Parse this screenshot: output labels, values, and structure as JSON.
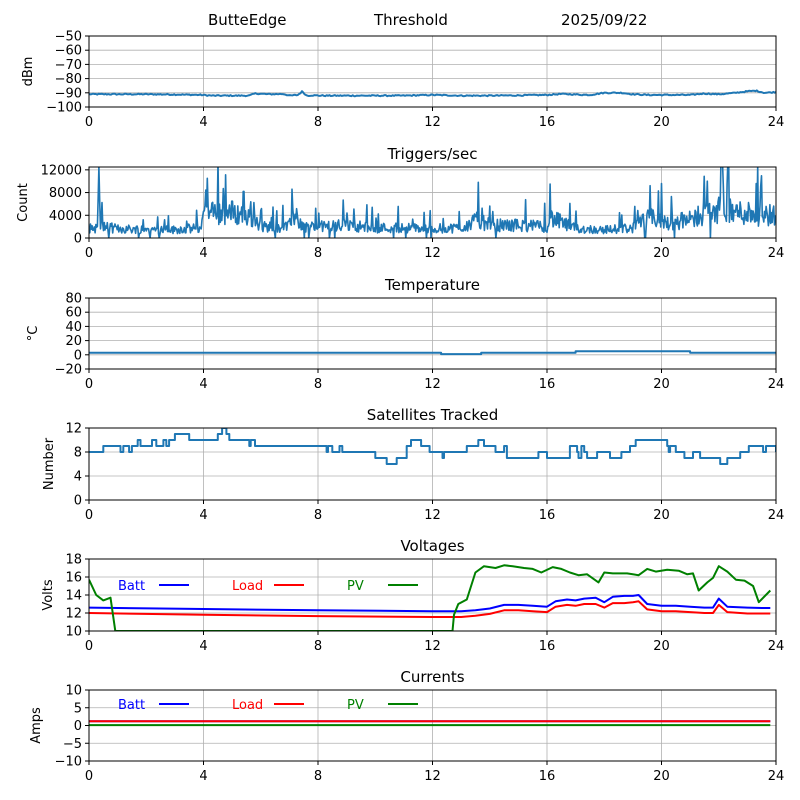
{
  "header": {
    "station": "ButteEdge",
    "mode": "Threshold",
    "date": "2025/09/22"
  },
  "colors": {
    "default_line": "#1f77b4",
    "batt": "#0000ff",
    "load": "#ff0000",
    "pv": "#008000",
    "grid": "#b0b0b0",
    "axis": "#000000"
  },
  "chart_data": [
    {
      "type": "line",
      "title": "",
      "xlabel": "",
      "ylabel": "dBm",
      "xlim": [
        0,
        24
      ],
      "ylim": [
        -100,
        -50
      ],
      "xticks": [
        0,
        4,
        8,
        12,
        16,
        20,
        24
      ],
      "yticks": [
        -100,
        -90,
        -80,
        -70,
        -60,
        -50
      ],
      "ytick_labels": [
        "−100",
        "−90",
        "−80",
        "−70",
        "−60",
        "−50"
      ],
      "grid": true,
      "series": [
        {
          "name": "threshold",
          "color_key": "default_line",
          "x": [
            0,
            1,
            2,
            3,
            3.9,
            4.3,
            5,
            5.6,
            5.8,
            6.3,
            6.8,
            7.0,
            7.3,
            7.45,
            7.6,
            7.8,
            8.2,
            9,
            10,
            11,
            12,
            13,
            14,
            15,
            16,
            16.5,
            17,
            17.5,
            18,
            18.6,
            19,
            19.5,
            20,
            21,
            21.5,
            22,
            22.5,
            23,
            23.3,
            23.6,
            24
          ],
          "y": [
            -91,
            -91,
            -91,
            -91.2,
            -91.5,
            -92,
            -92,
            -92,
            -90.5,
            -91,
            -90.8,
            -92,
            -91.5,
            -89,
            -92,
            -91.8,
            -92,
            -92,
            -92,
            -92,
            -91.5,
            -92,
            -92,
            -91.8,
            -91.5,
            -90.8,
            -91.2,
            -91.5,
            -90,
            -90,
            -91,
            -91.5,
            -91.5,
            -91.5,
            -90.5,
            -91,
            -90.2,
            -89,
            -88.5,
            -90,
            -89.5
          ]
        }
      ]
    },
    {
      "type": "line",
      "title": "Triggers/sec",
      "xlabel": "",
      "ylabel": "Count",
      "xlim": [
        0,
        24
      ],
      "ylim": [
        0,
        12500
      ],
      "xticks": [
        0,
        4,
        8,
        12,
        16,
        20,
        24
      ],
      "yticks": [
        0,
        4000,
        8000,
        12000
      ],
      "grid": true,
      "series": [
        {
          "name": "triggers",
          "color_key": "default_line",
          "style": "noisy",
          "x": [
            0,
            0.3,
            0.35,
            0.4,
            0.5,
            1,
            2,
            3,
            3.9,
            4.0,
            4.5,
            5,
            5.5,
            6,
            7,
            7.1,
            7.5,
            8,
            9,
            10,
            11,
            12,
            13,
            13.6,
            14,
            15,
            16,
            16.1,
            17,
            18,
            19,
            19.6,
            20,
            21,
            21.5,
            22,
            22.5,
            23,
            23.5,
            24
          ],
          "y": [
            1800,
            2000,
            12500,
            2500,
            2200,
            1800,
            1700,
            1600,
            2000,
            4500,
            5000,
            5000,
            4500,
            2200,
            2200,
            5000,
            2200,
            2200,
            2500,
            2000,
            2000,
            1800,
            2000,
            3500,
            2500,
            2500,
            2200,
            4000,
            1800,
            1600,
            2000,
            4000,
            3000,
            3500,
            5000,
            5500,
            5000,
            5000,
            4500,
            4500
          ],
          "peaks": [
            [
              0.35,
              12500
            ],
            [
              4.7,
              8700
            ],
            [
              5.4,
              8200
            ],
            [
              7.1,
              8600
            ],
            [
              11.7,
              4500
            ],
            [
              13.6,
              9800
            ],
            [
              16.1,
              9500
            ],
            [
              19.6,
              9200
            ],
            [
              20.0,
              9600
            ],
            [
              21.6,
              10000
            ],
            [
              22.3,
              9500
            ],
            [
              23.3,
              9600
            ]
          ]
        }
      ]
    },
    {
      "type": "line",
      "title": "Temperature",
      "xlabel": "",
      "ylabel": "°C",
      "xlim": [
        0,
        24
      ],
      "ylim": [
        -20,
        80
      ],
      "xticks": [
        0,
        4,
        8,
        12,
        16,
        20,
        24
      ],
      "yticks": [
        -20,
        0,
        20,
        40,
        60,
        80
      ],
      "ytick_labels": [
        "−20",
        "0",
        "20",
        "40",
        "60",
        "80"
      ],
      "grid": true,
      "series": [
        {
          "name": "temperature",
          "color_key": "default_line",
          "step": true,
          "x": [
            0,
            11.6,
            12.3,
            13.7,
            17.0,
            21.0,
            24
          ],
          "y": [
            3,
            3,
            1,
            3,
            5,
            3,
            3
          ]
        }
      ]
    },
    {
      "type": "line",
      "title": "Satellites Tracked",
      "xlabel": "",
      "ylabel": "Number",
      "xlim": [
        0,
        24
      ],
      "ylim": [
        0,
        12
      ],
      "xticks": [
        0,
        4,
        8,
        12,
        16,
        20,
        24
      ],
      "yticks": [
        0,
        4,
        8,
        12
      ],
      "grid": true,
      "series": [
        {
          "name": "satellites",
          "color_key": "default_line",
          "step": true,
          "x": [
            0,
            0.5,
            1.1,
            1.2,
            1.4,
            1.5,
            1.65,
            1.7,
            1.8,
            2.2,
            2.35,
            2.6,
            2.7,
            2.8,
            3.0,
            3.5,
            4.35,
            4.5,
            4.65,
            4.8,
            4.9,
            5.6,
            5.65,
            5.8,
            6.0,
            6.1,
            7.3,
            7.35,
            8.3,
            8.35,
            8.5,
            8.75,
            8.85,
            9.3,
            10.0,
            10.4,
            10.75,
            11.1,
            11.25,
            11.6,
            11.9,
            12.35,
            12.4,
            12.8,
            13.2,
            13.5,
            13.6,
            13.8,
            14.2,
            14.5,
            14.6,
            15.7,
            16.0,
            16.8,
            17.05,
            17.1,
            17.2,
            17.3,
            17.4,
            17.75,
            18.2,
            18.6,
            18.9,
            19.1,
            19.7,
            20.2,
            20.25,
            20.3,
            20.5,
            20.8,
            21.1,
            21.35,
            21.6,
            21.75,
            22.05,
            22.3,
            22.75,
            23.05,
            23.55,
            23.65,
            24
          ],
          "y": [
            8,
            9,
            8,
            9,
            8,
            9,
            9,
            10,
            9,
            10,
            9,
            10,
            9,
            10,
            11,
            10,
            10,
            11,
            12,
            11,
            10,
            9,
            10,
            9,
            9,
            9,
            9,
            9,
            8,
            9,
            8,
            9,
            8,
            8,
            7,
            6,
            7,
            9,
            10,
            9,
            8,
            7,
            8,
            8,
            9,
            9,
            10,
            9,
            8,
            9,
            7,
            8,
            7,
            9,
            8,
            7,
            9,
            8,
            7,
            8,
            7,
            8,
            9,
            10,
            10,
            9,
            8,
            9,
            8,
            7,
            8,
            7,
            7,
            7,
            6,
            7,
            8,
            9,
            8,
            9,
            8
          ]
        }
      ]
    },
    {
      "type": "line",
      "title": "Voltages",
      "xlabel": "",
      "ylabel": "Volts",
      "xlim": [
        0,
        24
      ],
      "ylim": [
        10,
        18
      ],
      "xticks": [
        0,
        4,
        8,
        12,
        16,
        20,
        24
      ],
      "yticks": [
        10,
        12,
        14,
        16,
        18
      ],
      "grid": true,
      "legend": {
        "placement": "top-inline",
        "entries": [
          "Batt",
          "Load",
          "PV"
        ]
      },
      "series": [
        {
          "name": "Batt",
          "color_key": "batt",
          "x": [
            0,
            4,
            8,
            12,
            13,
            13.5,
            14,
            14.5,
            15,
            15.5,
            16,
            16.3,
            16.7,
            17,
            17.3,
            17.7,
            18,
            18.3,
            18.7,
            19.0,
            19.2,
            19.5,
            20,
            20.5,
            21,
            21.5,
            21.8,
            22,
            22.3,
            23,
            23.5,
            23.8
          ],
          "y": [
            12.6,
            12.45,
            12.3,
            12.2,
            12.2,
            12.3,
            12.5,
            12.9,
            12.9,
            12.8,
            12.7,
            13.3,
            13.5,
            13.4,
            13.6,
            13.7,
            13.2,
            13.8,
            13.9,
            13.9,
            14.0,
            13.0,
            12.8,
            12.8,
            12.7,
            12.6,
            12.6,
            13.6,
            12.7,
            12.6,
            12.55,
            12.55
          ]
        },
        {
          "name": "Load",
          "color_key": "load",
          "x": [
            0,
            4,
            8,
            12,
            13,
            13.5,
            14,
            14.5,
            15,
            15.5,
            16,
            16.3,
            16.7,
            17,
            17.3,
            17.7,
            18,
            18.3,
            18.7,
            19.0,
            19.2,
            19.5,
            20,
            20.5,
            21,
            21.5,
            21.8,
            22,
            22.3,
            23,
            23.5,
            23.8
          ],
          "y": [
            12.0,
            11.8,
            11.65,
            11.55,
            11.55,
            11.7,
            11.9,
            12.3,
            12.3,
            12.2,
            12.1,
            12.7,
            12.9,
            12.8,
            13.0,
            13.0,
            12.6,
            13.1,
            13.1,
            13.2,
            13.3,
            12.4,
            12.2,
            12.2,
            12.1,
            12.0,
            12.0,
            12.9,
            12.1,
            11.95,
            11.95,
            11.95
          ]
        },
        {
          "name": "PV",
          "color_key": "pv",
          "x": [
            0,
            0.25,
            0.5,
            0.75,
            0.92,
            12.7,
            12.75,
            12.9,
            13.2,
            13.5,
            13.8,
            14.2,
            14.5,
            14.8,
            15.2,
            15.5,
            15.8,
            16.2,
            16.5,
            16.8,
            17.1,
            17.4,
            17.8,
            18.0,
            18.3,
            18.8,
            19.2,
            19.5,
            19.8,
            20.2,
            20.6,
            20.9,
            21.1,
            21.3,
            21.6,
            21.8,
            22.0,
            22.3,
            22.6,
            22.9,
            23.2,
            23.4,
            23.8
          ],
          "y": [
            15.7,
            14.0,
            13.4,
            13.7,
            10.0,
            10.0,
            11.8,
            13.0,
            13.5,
            16.5,
            17.2,
            17.0,
            17.3,
            17.2,
            17.0,
            16.9,
            16.5,
            17.1,
            16.9,
            16.5,
            16.2,
            16.3,
            15.4,
            16.5,
            16.4,
            16.4,
            16.2,
            16.9,
            16.6,
            16.8,
            16.7,
            16.3,
            16.4,
            14.5,
            15.4,
            15.9,
            17.2,
            16.6,
            15.7,
            15.6,
            15.0,
            13.2,
            14.5
          ]
        }
      ]
    },
    {
      "type": "line",
      "title": "Currents",
      "xlabel": "",
      "ylabel": "Amps",
      "xlim": [
        0,
        24
      ],
      "ylim": [
        -10,
        10
      ],
      "xticks": [
        0,
        4,
        8,
        12,
        16,
        20,
        24
      ],
      "yticks": [
        -10,
        -5,
        0,
        5,
        10
      ],
      "ytick_labels": [
        "−10",
        "−5",
        "0",
        "5",
        "10"
      ],
      "grid": true,
      "legend": {
        "placement": "top-inline",
        "entries": [
          "Batt",
          "Load",
          "PV"
        ]
      },
      "series": [
        {
          "name": "Batt",
          "color_key": "batt",
          "x": [
            0,
            23.8
          ],
          "y": [
            1.2,
            1.2
          ]
        },
        {
          "name": "Load",
          "color_key": "load",
          "x": [
            0,
            23.8
          ],
          "y": [
            1.2,
            1.2
          ]
        },
        {
          "name": "PV",
          "color_key": "pv",
          "x": [
            0,
            23.8
          ],
          "y": [
            0.1,
            0.1
          ]
        }
      ]
    }
  ]
}
